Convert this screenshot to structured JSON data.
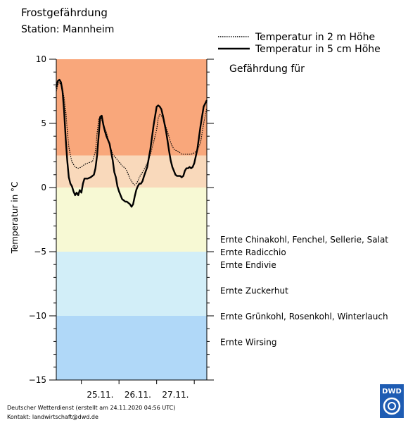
{
  "chart_data": {
    "type": "line",
    "title": "Frostgefährdung",
    "subtitle": "Station: Mannheim",
    "ylabel": "Temperatur in °C",
    "ylim": [
      -15,
      10
    ],
    "yticks": [
      10,
      5,
      0,
      -5,
      -10,
      -15
    ],
    "yticks_minor_step": 1,
    "x_unit": "hours since 25.11. 00:00",
    "xlim": [
      -16,
      80
    ],
    "date_labels": [
      {
        "label": "25.11.",
        "x": 12
      },
      {
        "label": "26.11.",
        "x": 36
      },
      {
        "label": "27.11.",
        "x": 60
      }
    ],
    "bands": [
      {
        "from": 2.5,
        "to": 10,
        "color": "#f9a77b"
      },
      {
        "from": 0,
        "to": 2.5,
        "color": "#f9d9bb"
      },
      {
        "from": -5,
        "to": 0,
        "color": "#f7f9d4"
      },
      {
        "from": -10,
        "to": -5,
        "color": "#d2eef8"
      },
      {
        "from": -15,
        "to": -10,
        "color": "#b0d8f8"
      }
    ],
    "series": [
      {
        "name": "Temperatur in 2 m Höhe",
        "style": "dotted",
        "x": [
          -16,
          -15,
          -14,
          -13,
          -12,
          -11,
          -10,
          -9,
          -8,
          -7,
          -6,
          -5,
          -4,
          -2,
          0,
          2,
          4,
          6,
          7,
          8,
          9,
          10,
          11,
          12,
          13,
          14,
          15,
          16,
          18,
          20,
          22,
          24,
          26,
          27,
          28,
          29,
          30,
          31,
          32,
          33,
          34,
          35,
          36,
          37,
          38,
          39,
          40,
          42,
          44,
          46,
          48,
          49,
          50,
          51,
          52,
          53,
          54,
          55,
          56,
          57,
          58,
          59,
          60,
          62,
          63,
          64,
          66,
          68,
          70,
          72,
          74,
          76,
          78,
          80
        ],
        "y": [
          7.5,
          8,
          8.2,
          8,
          7.6,
          7,
          6,
          4.5,
          3.2,
          2.5,
          2,
          1.8,
          1.6,
          1.5,
          1.6,
          1.8,
          1.9,
          2,
          2,
          2.4,
          2.8,
          4.2,
          5.3,
          5.5,
          5.3,
          4.9,
          4.6,
          4.3,
          3.3,
          2.6,
          2.3,
          2,
          1.7,
          1.6,
          1.5,
          1.3,
          1,
          0.7,
          0.5,
          0.3,
          0.2,
          0.3,
          0.5,
          0.8,
          1,
          1.2,
          1.4,
          1.9,
          2.6,
          3.5,
          4.5,
          5.4,
          5.7,
          5.6,
          5.4,
          5,
          4.7,
          4.3,
          3.9,
          3.5,
          3.2,
          3,
          2.9,
          2.8,
          2.7,
          2.6,
          2.6,
          2.6,
          2.6,
          2.7,
          2.9,
          3.5,
          5,
          6.2
        ]
      },
      {
        "name": "Temperatur in 5 cm Höhe",
        "style": "solid",
        "x": [
          -16,
          -15,
          -14,
          -13,
          -12,
          -11,
          -10,
          -9,
          -8,
          -7,
          -6,
          -5,
          -4,
          -3,
          -2,
          -1,
          0,
          1,
          2,
          3,
          4,
          6,
          8,
          9,
          10,
          11,
          12,
          13,
          14,
          15,
          16,
          18,
          20,
          21,
          22,
          23,
          24,
          25,
          26,
          27,
          28,
          29,
          30,
          31,
          32,
          33,
          34,
          35,
          36,
          37,
          38,
          39,
          40,
          42,
          44,
          46,
          48,
          49,
          50,
          51,
          52,
          53,
          54,
          55,
          56,
          57,
          58,
          59,
          60,
          61,
          62,
          63,
          64,
          65,
          66,
          67,
          68,
          69,
          70,
          71,
          72,
          74,
          76,
          78,
          80
        ],
        "y": [
          7.8,
          8.3,
          8.4,
          8.2,
          7.5,
          6,
          3.8,
          2.1,
          0.8,
          0.3,
          0.1,
          -0.3,
          -0.6,
          -0.4,
          -0.6,
          -0.2,
          -0.4,
          0.3,
          0.7,
          0.7,
          0.7,
          0.8,
          1,
          1.5,
          2.5,
          4,
          5.5,
          5.6,
          4.9,
          4.4,
          4,
          3.4,
          2.1,
          1.2,
          0.8,
          0.1,
          -0.3,
          -0.6,
          -0.9,
          -1,
          -1.1,
          -1.1,
          -1.2,
          -1.3,
          -1.5,
          -1.3,
          -0.7,
          -0.2,
          0.1,
          0.3,
          0.3,
          0.5,
          0.9,
          1.6,
          3,
          4.8,
          6.3,
          6.4,
          6.3,
          6.1,
          5.6,
          5,
          4.4,
          3.6,
          2.8,
          2.1,
          1.6,
          1.3,
          1,
          0.9,
          0.9,
          0.9,
          0.8,
          0.9,
          1.3,
          1.5,
          1.5,
          1.6,
          1.5,
          1.6,
          1.9,
          3,
          4.8,
          6.3,
          6.8
        ]
      }
    ],
    "legend_position": "top-right",
    "legend_heading": "Gefährdung für",
    "annotations": [
      {
        "y": -4,
        "text": "Ernte Chinakohl, Fenchel, Sellerie, Salat"
      },
      {
        "y": -5,
        "text": "Ernte Radicchio"
      },
      {
        "y": -6,
        "text": "Ernte Endivie"
      },
      {
        "y": -8,
        "text": "Ernte Zuckerhut"
      },
      {
        "y": -10,
        "text": "Ernte Grünkohl, Rosenkohl, Winterlauch"
      },
      {
        "y": -12,
        "text": "Ernte Wirsing"
      }
    ]
  },
  "footer": {
    "line1": "Deutscher Wetterdienst (erstellt am 24.11.2020 04:56 UTC)",
    "line2": "Kontakt: landwirtschaft@dwd.de"
  },
  "logo": {
    "text": "DWD"
  },
  "colors": {
    "logo_blue": "#1e5cb3"
  }
}
